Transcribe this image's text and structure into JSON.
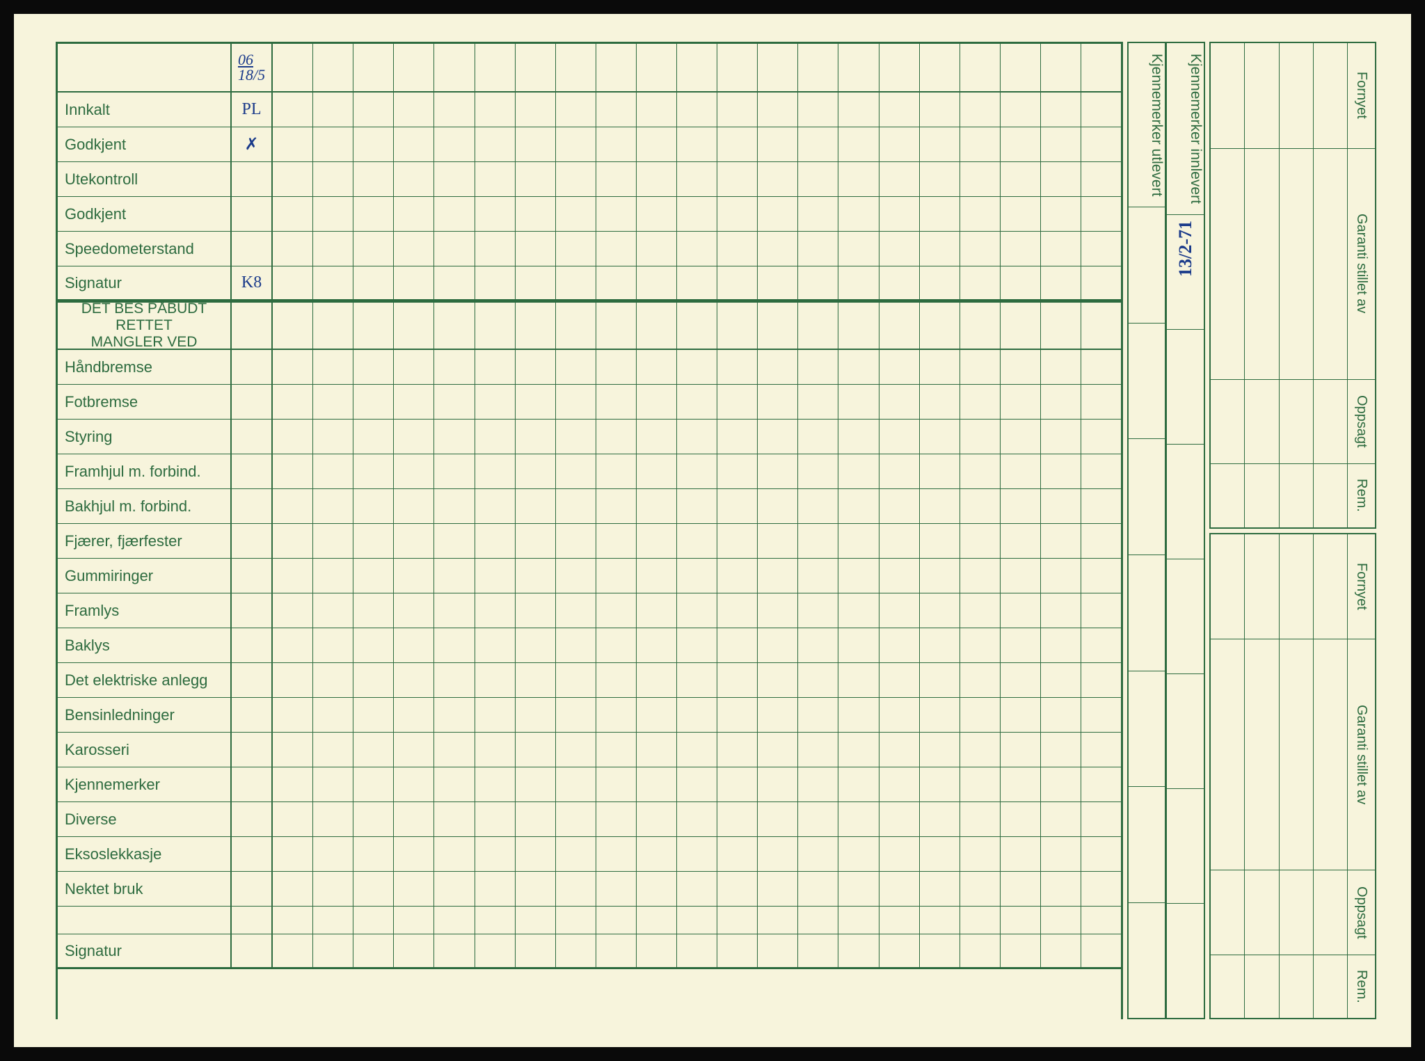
{
  "colors": {
    "paper": "#f7f4dc",
    "ink_green": "#2d6b3f",
    "handwriting": "#1a3a8a",
    "border_black": "#0a0a0a"
  },
  "main": {
    "header_date_top": "06",
    "header_date_bottom": "18/5",
    "rows": [
      {
        "label": "Innkalt",
        "val": "PL"
      },
      {
        "label": "Godkjent",
        "val": "✗"
      },
      {
        "label": "Utekontroll",
        "val": ""
      },
      {
        "label": "Godkjent",
        "val": ""
      },
      {
        "label": "Speedometerstand",
        "val": ""
      },
      {
        "label": "Signatur",
        "val": "K8"
      }
    ],
    "section_title_1": "DET BES PÅBUDT RETTET",
    "section_title_2": "MANGLER VED",
    "defect_rows": [
      "Håndbremse",
      "Fotbremse",
      "Styring",
      "Framhjul m. forbind.",
      "Bakhjul m. forbind.",
      "Fjærer, fjærfester",
      "Gummiringer",
      "Framlys",
      "Baklys",
      "Det elektriske anlegg",
      "Bensinledninger",
      "Karosseri",
      "Kjennemerker",
      "Diverse",
      "Eksoslekkasje",
      "Nektet bruk"
    ],
    "signatur_label": "Signatur",
    "num_data_cols": 22
  },
  "side": {
    "col1_label": "Kjennemerker utlevert",
    "col2_label": "Kjennemerker innlevert",
    "col2_handwritten": "13/2-71"
  },
  "right": {
    "labels": [
      "Fornyet",
      "Garanti stillet av",
      "Oppsagt",
      "Rem."
    ],
    "num_cols": 4
  }
}
